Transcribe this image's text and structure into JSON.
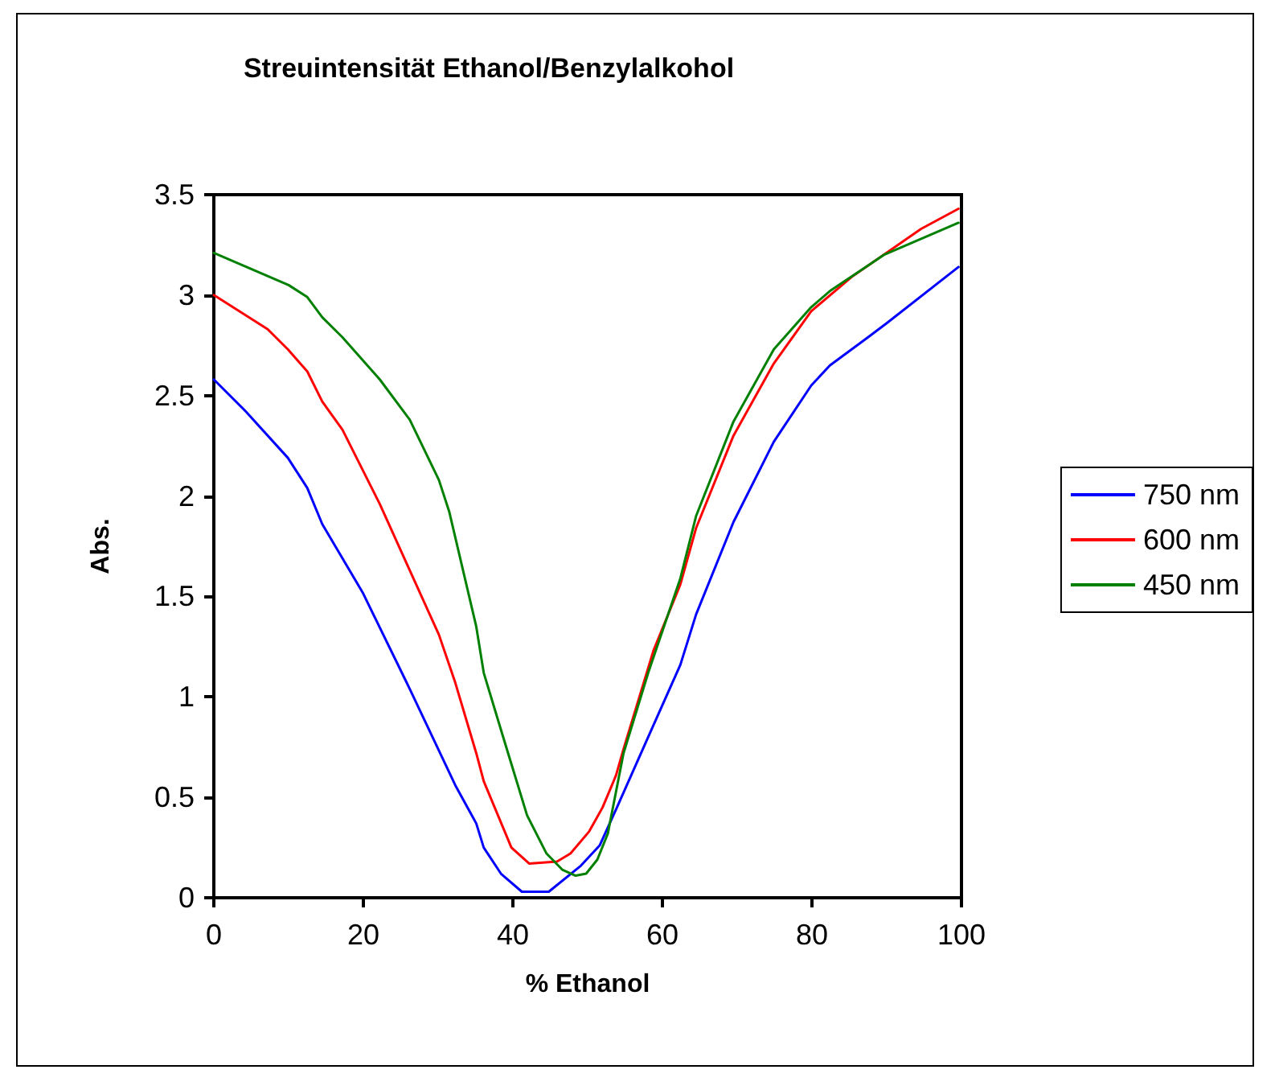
{
  "chart_data": {
    "type": "line",
    "title": "Streuintensität Ethanol/Benzylalkohol",
    "xlabel": "% Ethanol",
    "ylabel": "Abs.",
    "xlim": [
      0,
      100
    ],
    "xticks": [
      0,
      20,
      40,
      60,
      80,
      100
    ],
    "ylim": [
      0,
      3.5
    ],
    "yticks": [
      0,
      0.5,
      1,
      1.5,
      2,
      2.5,
      3,
      3.5
    ],
    "grid": false,
    "legend": "right",
    "marker": "none",
    "line_style": "solid",
    "series": [
      {
        "name": "750 nm",
        "color": "#0000ff",
        "x": [
          0,
          4.3,
          9.9,
          12.5,
          14.5,
          19.9,
          26.2,
          32.3,
          35.1,
          36.1,
          38.4,
          41.2,
          44.8,
          49.1,
          51.6,
          53.8,
          58.1,
          62.4,
          64.5,
          69.5,
          74.9,
          79.9,
          82.4,
          87.5,
          90,
          99.6
        ],
        "values": [
          2.58,
          2.42,
          2.19,
          2.04,
          1.86,
          1.52,
          1.04,
          0.56,
          0.37,
          0.25,
          0.12,
          0.03,
          0.03,
          0.16,
          0.26,
          0.44,
          0.8,
          1.16,
          1.41,
          1.87,
          2.27,
          2.55,
          2.65,
          2.79,
          2.86,
          3.14
        ]
      },
      {
        "name": "600 nm",
        "color": "#ff0000",
        "x": [
          0,
          7.2,
          9.9,
          12.5,
          14.5,
          17.2,
          22.2,
          26.2,
          30.1,
          32.3,
          35.1,
          36.1,
          39.8,
          42.2,
          45.9,
          47.7,
          50.2,
          52,
          53.8,
          54.8,
          58.8,
          62.4,
          64.5,
          69.5,
          74.9,
          79.9,
          85.3,
          94.6,
          99.6
        ],
        "values": [
          3.0,
          2.83,
          2.73,
          2.62,
          2.47,
          2.33,
          1.96,
          1.63,
          1.31,
          1.07,
          0.72,
          0.58,
          0.25,
          0.17,
          0.18,
          0.22,
          0.33,
          0.45,
          0.61,
          0.74,
          1.23,
          1.56,
          1.84,
          2.3,
          2.66,
          2.92,
          3.09,
          3.33,
          3.43
        ]
      },
      {
        "name": "450 nm",
        "color": "#008000",
        "x": [
          0,
          5,
          10,
          12.5,
          14.5,
          17.2,
          22.2,
          26.2,
          30.1,
          31.5,
          35.1,
          36.1,
          38.7,
          41.9,
          44.5,
          46.6,
          48.4,
          49.8,
          51.3,
          52.7,
          54.8,
          58.1,
          62.4,
          64.5,
          69.5,
          74.9,
          79.9,
          82.4,
          89.6,
          99.6
        ],
        "values": [
          3.21,
          3.13,
          3.05,
          2.99,
          2.89,
          2.79,
          2.58,
          2.38,
          2.08,
          1.92,
          1.35,
          1.12,
          0.8,
          0.41,
          0.22,
          0.14,
          0.11,
          0.12,
          0.19,
          0.32,
          0.72,
          1.12,
          1.59,
          1.9,
          2.37,
          2.73,
          2.94,
          3.02,
          3.2,
          3.36
        ]
      }
    ]
  }
}
